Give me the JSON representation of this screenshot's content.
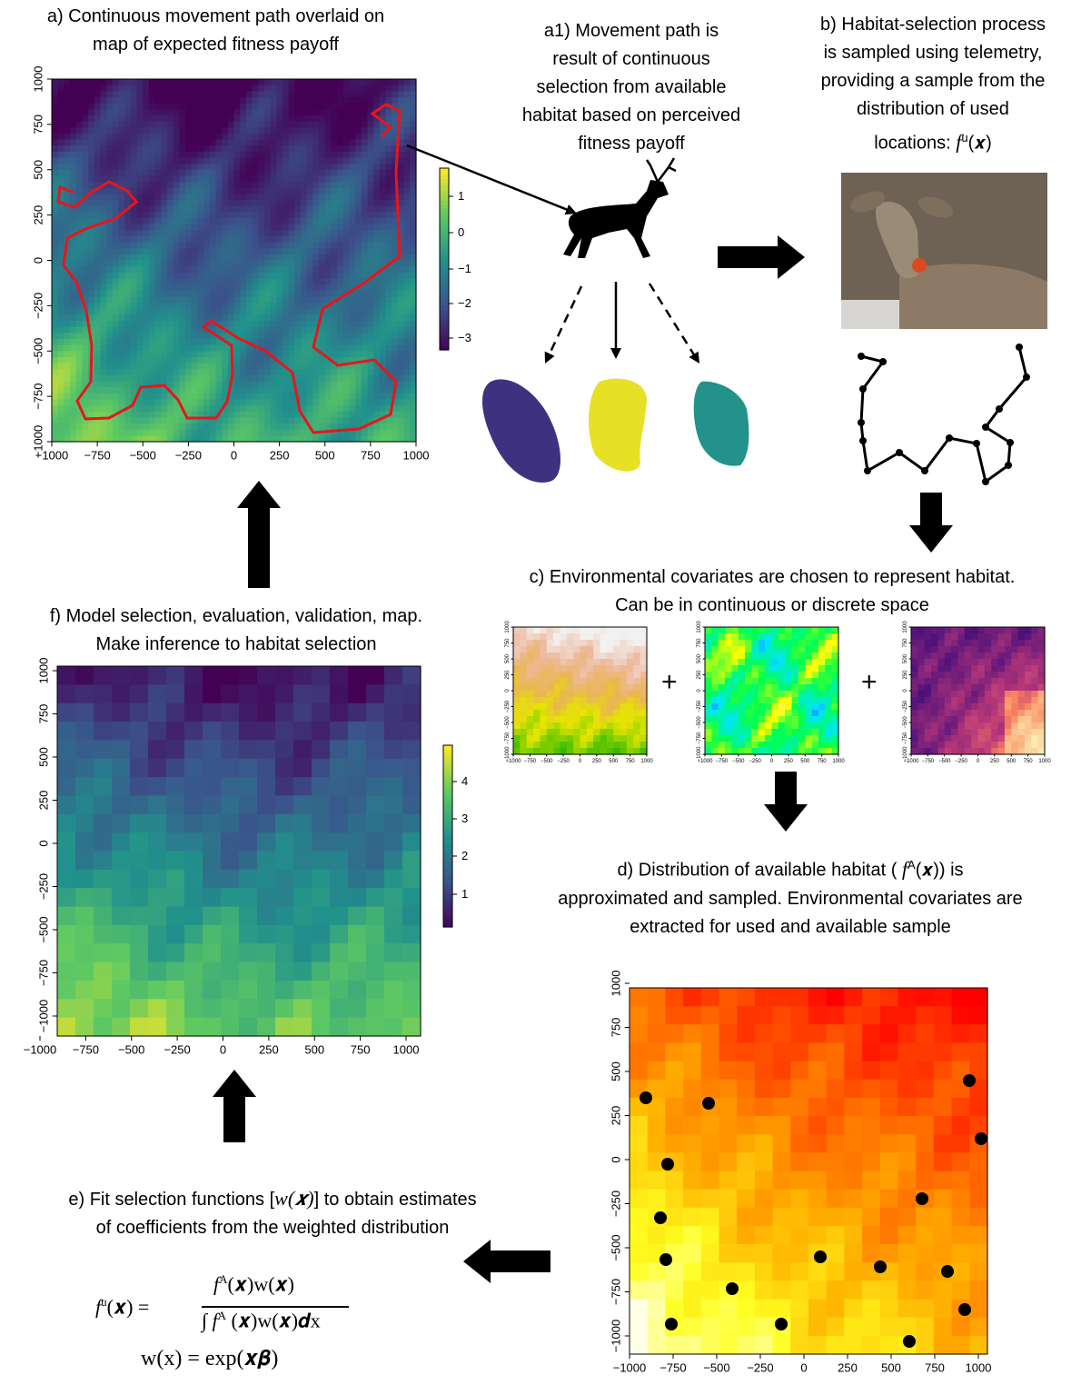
{
  "panel_a": {
    "lines": [
      "a) Continuous movement path overlaid on",
      "map of expected fitness payoff"
    ],
    "xticks": [
      "−1000",
      "−750",
      "−500",
      "−250",
      "0",
      "250",
      "500",
      "750",
      "1000"
    ],
    "yticks": [
      "−1000",
      "−750",
      "−500",
      "−250",
      "0",
      "250",
      "500",
      "750",
      "1000"
    ],
    "colorbar_ticks": [
      "1",
      "0",
      "−1",
      "−2",
      "−3"
    ]
  },
  "panel_a1": {
    "lines": [
      "a1) Movement path is",
      "result of continuous",
      "selection from available",
      "habitat based on perceived",
      "fitness payoff"
    ]
  },
  "panel_b": {
    "lines": [
      "b) Habitat-selection process",
      "is sampled using telemetry,",
      "providing a sample from the",
      "distribution of used"
    ],
    "last_line": {
      "text": "locations: ",
      "f": "f",
      "sup": "u",
      "arg": "(𝒙)"
    }
  },
  "panel_c": {
    "lines": [
      "c) Environmental covariates are chosen to represent habitat.",
      "Can be in continuous or discrete space"
    ],
    "operators": [
      "+",
      "+"
    ],
    "maps": [
      {
        "xticks": [
          "−1000",
          "−750",
          "−500",
          "−250",
          "0",
          "250",
          "500",
          "750",
          "1000"
        ],
        "yticks": [
          "−1000",
          "−750",
          "−500",
          "−250",
          "0",
          "250",
          "500",
          "750",
          "1000"
        ]
      },
      {
        "xticks": [
          "−1000",
          "−750",
          "−500",
          "−250",
          "0",
          "250",
          "500",
          "750",
          "1000"
        ],
        "yticks": [
          "−1000",
          "−750",
          "−500",
          "−250",
          "0",
          "250",
          "500",
          "750",
          "1000"
        ]
      },
      {
        "xticks": [
          "−1000",
          "−750",
          "−500",
          "−250",
          "0",
          "250",
          "500",
          "750",
          "1000"
        ],
        "yticks": [
          "−1000",
          "−750",
          "−500",
          "−250",
          "0",
          "250",
          "500",
          "750",
          "1000"
        ]
      }
    ]
  },
  "panel_d": {
    "line1": {
      "text": "d) Distribution of available habitat (",
      "f": " f",
      "sup": "A",
      "arg": "(𝒙)",
      "tail": ") is"
    },
    "lines": [
      "approximated and sampled. Environmental covariates are",
      "extracted for used and available sample"
    ],
    "xticks": [
      "−1000",
      "−750",
      "−500",
      "−250",
      "0",
      "250",
      "500",
      "750",
      "1000"
    ],
    "yticks": [
      "−1000",
      "−750",
      "−500",
      "−250",
      "0",
      "250",
      "500",
      "750",
      "1000"
    ]
  },
  "panel_e": {
    "line1": {
      "text": "e) Fit selection functions [",
      "w": "w(𝒙)",
      "tail": "] to obtain estimates"
    },
    "lines": [
      "of coefficients from the weighted distribution"
    ],
    "equation": {
      "lhs_f": "f",
      "lhs_sup": "u",
      "lhs_rest": "(𝒙) =",
      "num_f": "f",
      "num_sup": "A",
      "num_rest": "(𝒙)w(𝒙)",
      "den_f": "∫ f",
      "den_sup": "A",
      "den_rest": " (𝒙)w(𝒙)𝒅x",
      "second": "w(x) =  exp(𝒙𝜷)"
    }
  },
  "panel_f": {
    "lines": [
      "f) Model selection, evaluation, validation, map.",
      "Make inference to habitat selection"
    ],
    "xticks": [
      "−1000",
      "−750",
      "−500",
      "−250",
      "0",
      "250",
      "500",
      "750",
      "1000"
    ],
    "yticks": [
      "−1000",
      "−750",
      "−500",
      "−250",
      "0",
      "250",
      "500",
      "750",
      "1000"
    ],
    "colorbar_ticks": [
      "4",
      "3",
      "2",
      "1"
    ]
  }
}
